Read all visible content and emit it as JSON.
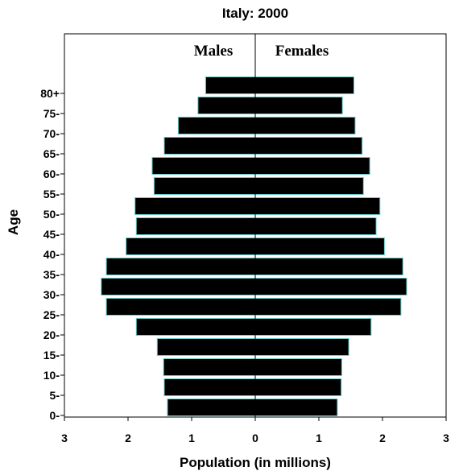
{
  "chart_data": {
    "type": "bar",
    "orientation": "horizontal",
    "title": "Italy: 2000",
    "xlabel": "Population (in millions)",
    "ylabel": "Age",
    "xlim": [
      -3,
      3
    ],
    "x_ticks": [
      {
        "value": -3,
        "label": "3"
      },
      {
        "value": -2,
        "label": "2"
      },
      {
        "value": -1,
        "label": "1"
      },
      {
        "value": 0,
        "label": "0"
      },
      {
        "value": 1,
        "label": "1"
      },
      {
        "value": 2,
        "label": "2"
      },
      {
        "value": 3,
        "label": "3"
      }
    ],
    "categories": [
      "0-",
      "5-",
      "10-",
      "15-",
      "20-",
      "25-",
      "30-",
      "35-",
      "40-",
      "45-",
      "50-",
      "55-",
      "60-",
      "65-",
      "70-",
      "75-",
      "80+"
    ],
    "series": [
      {
        "name": "Males",
        "values": [
          1.38,
          1.43,
          1.44,
          1.54,
          1.87,
          2.34,
          2.42,
          2.34,
          2.03,
          1.87,
          1.89,
          1.59,
          1.62,
          1.43,
          1.21,
          0.9,
          0.78
        ]
      },
      {
        "name": "Females",
        "values": [
          1.29,
          1.35,
          1.36,
          1.47,
          1.82,
          2.29,
          2.38,
          2.32,
          2.03,
          1.9,
          1.96,
          1.7,
          1.8,
          1.68,
          1.57,
          1.37,
          1.55
        ]
      }
    ],
    "bar_color": "#000000",
    "bar_outline": "#66c7c7",
    "grid": false,
    "legend": "none"
  }
}
